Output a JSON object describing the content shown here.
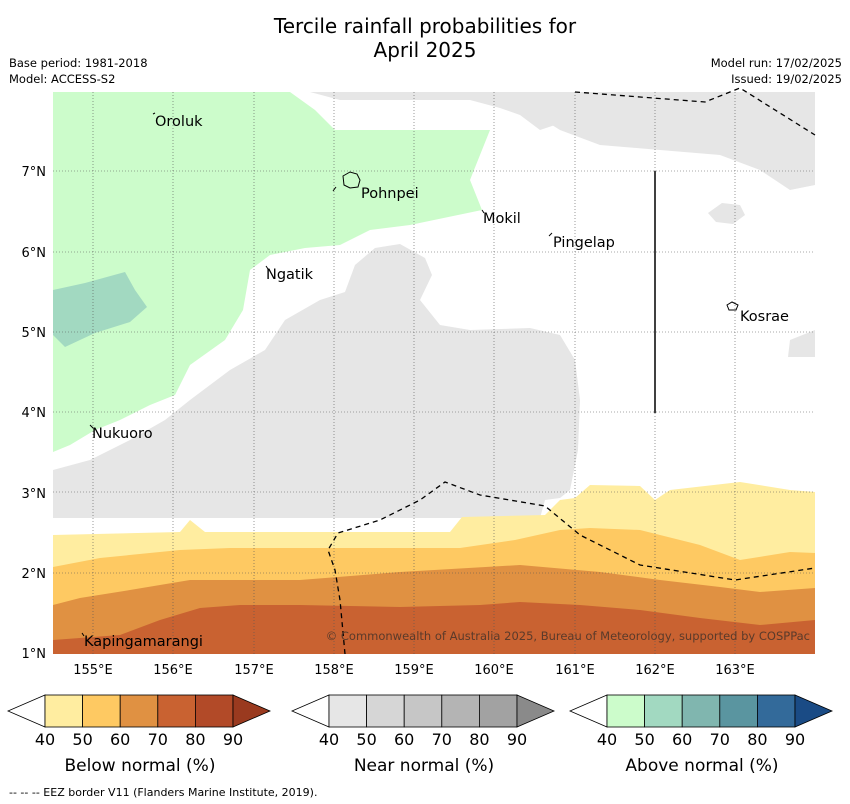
{
  "header": {
    "title_line1": "Tercile rainfall probabilities for",
    "title_line2": "April 2025",
    "base_period": "Base period: 1981-2018",
    "model": "Model: ACCESS-S2",
    "model_run": "Model run: 17/02/2025",
    "issued": "Issued: 19/02/2025"
  },
  "map": {
    "lat_labels": [
      "1°N",
      "2°N",
      "3°N",
      "4°N",
      "5°N",
      "6°N",
      "7°N"
    ],
    "lon_labels": [
      "155°E",
      "156°E",
      "157°E",
      "158°E",
      "159°E",
      "160°E",
      "161°E",
      "162°E",
      "163°E"
    ],
    "places": {
      "oroluk": "Oroluk",
      "pohnpei": "Pohnpei",
      "mokil": "Mokil",
      "pingelap": "Pingelap",
      "ngatik": "Ngatik",
      "kosrae": "Kosrae",
      "nukuoro": "Nukuoro",
      "kapingamarangi": "Kapingamarangi"
    },
    "copyright": "© Commonwealth of Australia 2025, Bureau of Meteorology, supported by COSPPac"
  },
  "legend": {
    "ticks": [
      "40",
      "50",
      "60",
      "70",
      "80",
      "90"
    ],
    "below": {
      "title": "Below normal (%)",
      "colors": [
        "#ffffff",
        "#ffeda0",
        "#fec962",
        "#e09142",
        "#c96231",
        "#b24a28",
        "#9a3a1f"
      ]
    },
    "near": {
      "title": "Near normal (%)",
      "colors": [
        "#ffffff",
        "#e6e6e6",
        "#d6d6d6",
        "#c6c6c6",
        "#b4b4b4",
        "#a2a2a2",
        "#8a8a8a"
      ]
    },
    "above": {
      "title": "Above normal (%)",
      "colors": [
        "#ffffff",
        "#ccfccb",
        "#a2d9c1",
        "#80b6af",
        "#5a95a0",
        "#336a9a",
        "#1a4b85"
      ]
    }
  },
  "footnote": "--  --  -- EEZ border V11 (Flanders Marine Institute, 2019)."
}
